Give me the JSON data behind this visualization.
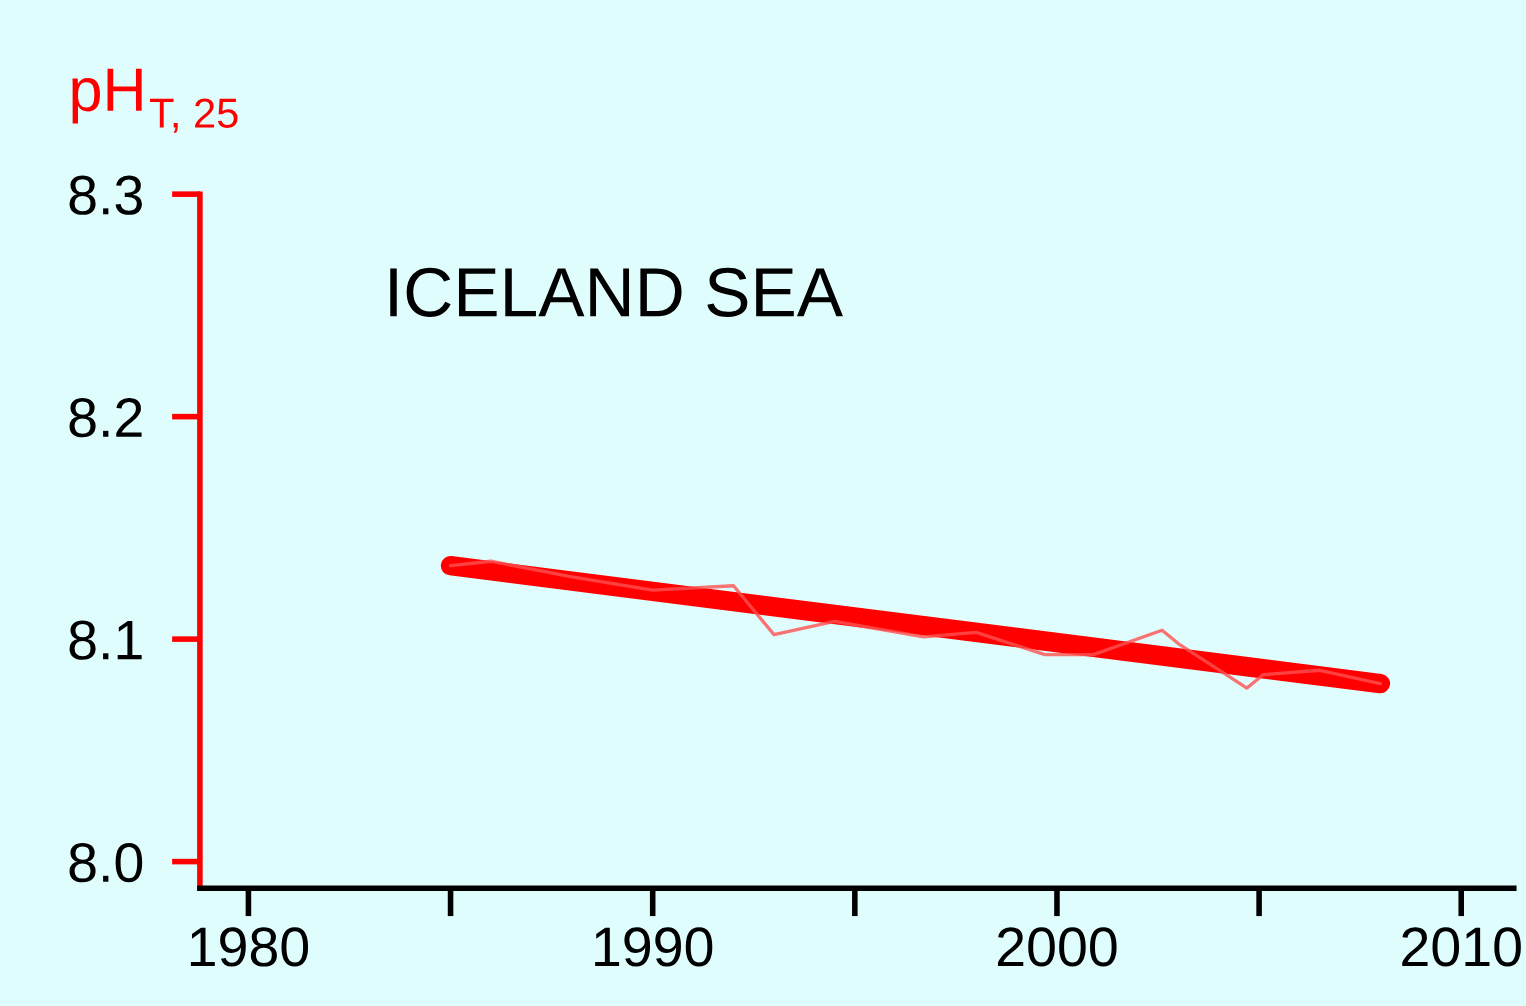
{
  "chart_data": {
    "type": "line",
    "ylabel": "pH$_{T, 25}$",
    "annotations": [
      "ICELAND SEA"
    ],
    "series": [
      {
        "color": "#ff5050",
        "x": [
          1985,
          1986,
          1988,
          1990,
          1992,
          1993,
          1994.5,
          1996.7,
          1998,
          1999.7,
          2000.9,
          2002.6,
          2003,
          2004.7,
          2005.1,
          2006.5,
          2008
        ],
        "values": [
          8.133,
          8.135,
          8.128,
          8.122,
          8.124,
          8.102,
          8.108,
          8.101,
          8.103,
          8.093,
          8.093,
          8.104,
          8.098,
          8.078,
          8.084,
          8.086,
          8.08
        ]
      },
      {
        "color": "#ff0000",
        "x": [
          1985,
          2008
        ],
        "values": [
          8.133,
          8.08
        ]
      }
    ],
    "xlim": [
      1978.8,
      2011.3
    ],
    "ylim": [
      7.988,
      8.3
    ],
    "xticks": [
      1980,
      {
        "value": 1985,
        "label": null
      },
      1990,
      {
        "value": 1995,
        "label": null
      },
      2000,
      {
        "value": 2005,
        "label": null
      },
      2010
    ],
    "yticks": [
      {
        "value": 8.0,
        "label": "8.0"
      },
      8.1,
      8.2,
      8.3
    ],
    "grid": false,
    "legend": false,
    "marker": "none",
    "line_style": "solid"
  }
}
